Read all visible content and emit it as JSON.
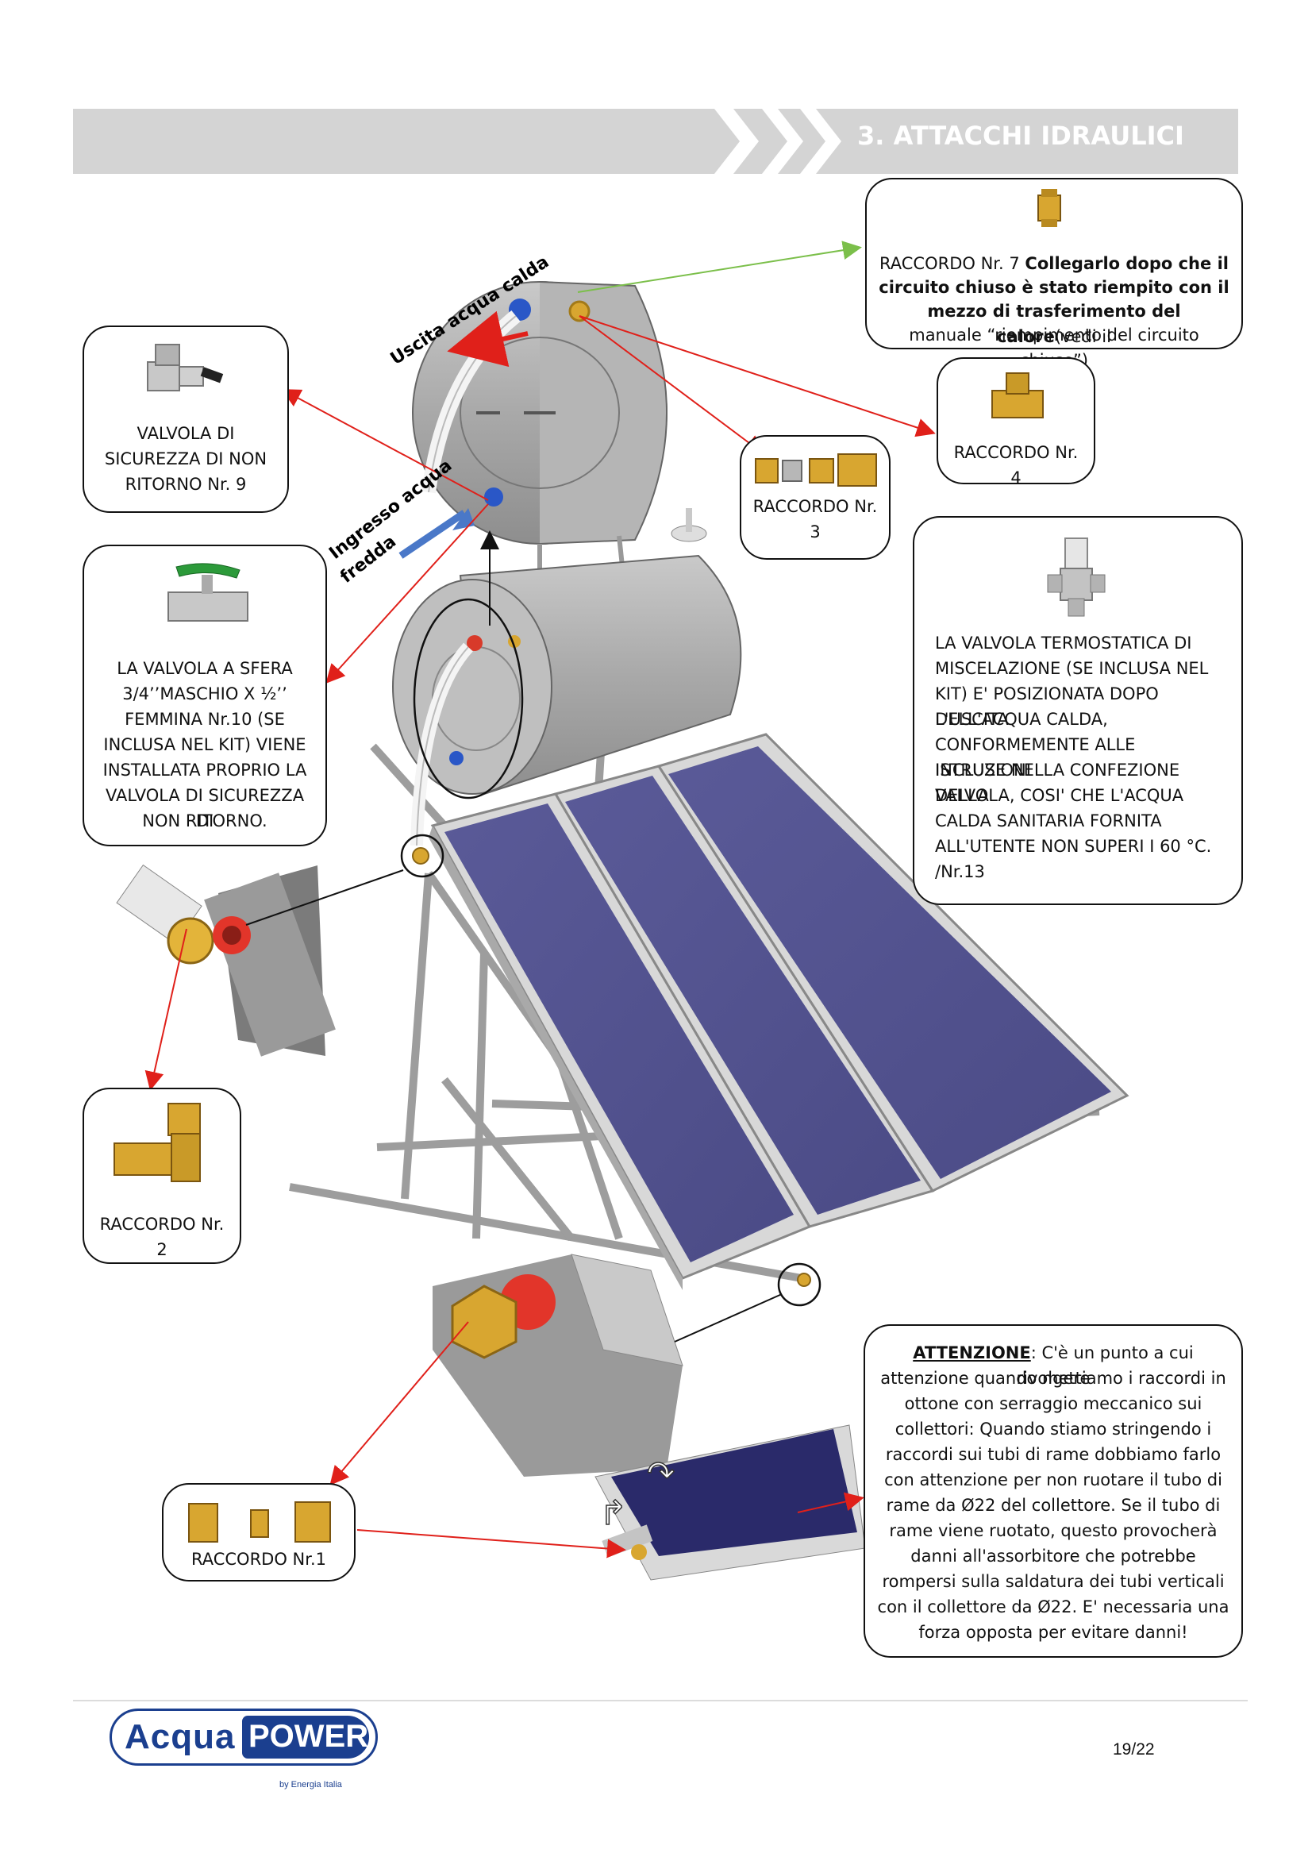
{
  "header": {
    "title": "3. ATTACCHI IDRAULICI"
  },
  "labels": {
    "hot_water_out": "Uscita acqua calda",
    "cold_water_in_1": "Ingresso acqua",
    "cold_water_in_2": "fredda"
  },
  "callouts": {
    "raccordo7": {
      "prefix": "RACCORDO Nr. 7 ",
      "bold1": "Collegarlo dopo che il",
      "bold2": "circuito chiuso è stato riempito con il",
      "bold3": "mezzo di trasferimento del calore",
      "tail3": "(vedi il",
      "line4": "manuale “riempimento del circuito chiuso”)"
    },
    "raccordo4": {
      "text": "RACCORDO Nr. 4"
    },
    "raccordo3": {
      "line1": "RACCORDO Nr.",
      "line2": "3"
    },
    "valvola9": {
      "line1": "VALVOLA DI",
      "line2": "SICUREZZA DI NON",
      "line3": "RITORNO Nr. 9"
    },
    "valvola10": {
      "line1": "LA VALVOLA A SFERA",
      "line2": "3/4’’MASCHIO X ½’’",
      "line3": "FEMMINA Nr.10 (SE",
      "line4": "INCLUSA NEL KIT) VIENE",
      "line5": "INSTALLATA PROPRIO LA",
      "line6": "VALVOLA DI SICUREZZA DI",
      "line7": "NON RITORNO."
    },
    "valvola13": {
      "line1": "LA VALVOLA TERMOSTATICA DI",
      "line2": "MISCELAZIONE (SE INCLUSA NEL",
      "line3": "KIT) E' POSIZIONATA DOPO L'USCITA",
      "line4": "DELL'ACQUA CALDA,",
      "line5": "CONFORMEMENTE ALLE ISTRUZIONI",
      "line6": "INCLUSE NELLA CONFEZIONE DELLA",
      "line7": "VALVOLA, COSI' CHE L'ACQUA",
      "line8": "CALDA SANITARIA FORNITA",
      "line9": "ALL'UTENTE NON SUPERI I 60 °C.",
      "line10": "/Nr.13"
    },
    "raccordo2": {
      "text": "RACCORDO Nr. 2"
    },
    "raccordo1": {
      "text": "RACCORDO Nr.1"
    },
    "attenzione": {
      "title": "ATTENZIONE",
      "line1": ": C'è un punto a cui rivolgere",
      "line2": "attenzione quando mettiamo i raccordi in",
      "line3": "ottone con serraggio meccanico sui",
      "line4": "collettori: Quando stiamo stringendo i",
      "line5": "raccordi sui tubi di rame dobbiamo farlo",
      "line6": "con attenzione per non ruotare il tubo di",
      "line7": "rame da Ø22 del collettore. Se il tubo di",
      "line8": "rame viene ruotato, questo provocherà",
      "line9": "danni all'assorbitore che potrebbe",
      "line10": "rompersi sulla saldatura dei tubi verticali",
      "line11": "con il collettore da Ø22. E' necessaria una",
      "line12": "forza opposta per evitare danni!"
    }
  },
  "footer": {
    "logo_acqua": "Acqua",
    "logo_power": "POWER",
    "logo_sub": "by Energia Italia",
    "page": "19/22"
  },
  "colors": {
    "panel_blue": "#55558f",
    "frame_gray": "#b9b9b9",
    "arrow_red": "#e0201a",
    "arrow_green": "#7bbf4a",
    "arrow_blue": "#4a78c8",
    "brass": "#d8a630",
    "logo_blue": "#1b3f8f"
  }
}
